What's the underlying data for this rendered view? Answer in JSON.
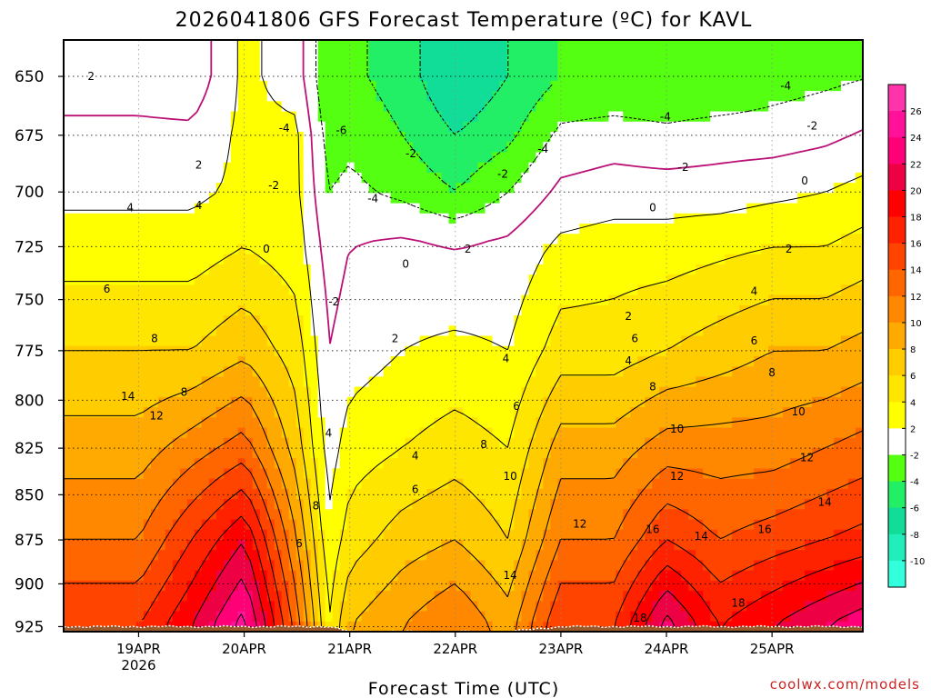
{
  "chart_data": {
    "type": "heatmap",
    "title": "2026041806 GFS Forecast Temperature (ºC) for KAVL",
    "xlabel": "Forecast Time (UTC)",
    "ylabel": "",
    "y_reversed": true,
    "ylim": [
      928,
      635
    ],
    "y_ticks": [
      "650",
      "675",
      "700",
      "725",
      "750",
      "775",
      "800",
      "825",
      "850",
      "875",
      "900",
      "925"
    ],
    "x_ticks": [
      {
        "label": "19APR",
        "sublabel": "2026"
      },
      {
        "label": "20APR"
      },
      {
        "label": "21APR"
      },
      {
        "label": "22APR"
      },
      {
        "label": "23APR"
      },
      {
        "label": "24APR"
      },
      {
        "label": "25APR"
      }
    ],
    "colorbar_labels": [
      "26",
      "24",
      "22",
      "20",
      "18",
      "16",
      "14",
      "12",
      "10",
      "8",
      "6",
      "4",
      "2",
      "-2",
      "-4",
      "-6",
      "-8",
      "-10"
    ],
    "watermark": "coolwx.com/models",
    "temperature_bands": [
      {
        "min": -12,
        "max": -10,
        "color": "#33ffdd"
      },
      {
        "min": -10,
        "max": -8,
        "color": "#22eebb"
      },
      {
        "min": -8,
        "max": -6,
        "color": "#11dd99"
      },
      {
        "min": -6,
        "max": -4,
        "color": "#22ee66"
      },
      {
        "min": -4,
        "max": -2,
        "color": "#55ff11"
      },
      {
        "min": -2,
        "max": 2,
        "color": "#ffffff"
      },
      {
        "min": 2,
        "max": 4,
        "color": "#ffff00"
      },
      {
        "min": 4,
        "max": 6,
        "color": "#ffe600"
      },
      {
        "min": 6,
        "max": 8,
        "color": "#ffcc00"
      },
      {
        "min": 8,
        "max": 10,
        "color": "#ffaa00"
      },
      {
        "min": 10,
        "max": 12,
        "color": "#ff8800"
      },
      {
        "min": 12,
        "max": 14,
        "color": "#ff6600"
      },
      {
        "min": 14,
        "max": 16,
        "color": "#ff4400"
      },
      {
        "min": 16,
        "max": 18,
        "color": "#ff2200"
      },
      {
        "min": 18,
        "max": 20,
        "color": "#ff0000"
      },
      {
        "min": 20,
        "max": 22,
        "color": "#ee0044"
      },
      {
        "min": 22,
        "max": 24,
        "color": "#ff0077"
      },
      {
        "min": 24,
        "max": 26,
        "color": "#ff1199"
      },
      {
        "min": 26,
        "max": 40,
        "color": "#ff33aa"
      }
    ],
    "profiles": [
      {
        "time": 0.0,
        "surface_hpa": 925,
        "levels": [
          [
            925,
            16
          ],
          [
            875,
            12
          ],
          [
            825,
            9
          ],
          [
            775,
            6
          ],
          [
            725,
            3
          ],
          [
            700,
            1.5
          ],
          [
            675,
            0.5
          ],
          [
            650,
            -1
          ]
        ]
      },
      {
        "time": 0.5,
        "surface_hpa": 925,
        "levels": [
          [
            925,
            20
          ],
          [
            875,
            16
          ],
          [
            825,
            11
          ],
          [
            775,
            6
          ],
          [
            725,
            3
          ],
          [
            700,
            1.5
          ],
          [
            675,
            0.5
          ],
          [
            650,
            -1.5
          ]
        ]
      },
      {
        "time": 1.0,
        "surface_hpa": 925,
        "levels": [
          [
            925,
            25
          ],
          [
            875,
            20
          ],
          [
            825,
            13
          ],
          [
            775,
            7.5
          ],
          [
            725,
            4
          ],
          [
            700,
            2.5
          ],
          [
            675,
            2.5
          ],
          [
            650,
            2.5
          ]
        ]
      },
      {
        "time": 1.5,
        "surface_hpa": 925,
        "levels": [
          [
            925,
            13
          ],
          [
            875,
            10
          ],
          [
            825,
            7
          ],
          [
            775,
            5
          ],
          [
            725,
            3
          ],
          [
            700,
            2.5
          ],
          [
            675,
            2.5
          ],
          [
            650,
            1
          ]
        ]
      },
      {
        "time": 1.8,
        "surface_hpa": 925,
        "levels": [
          [
            925,
            4
          ],
          [
            875,
            2.5
          ],
          [
            825,
            1
          ],
          [
            775,
            0
          ],
          [
            725,
            -1
          ],
          [
            700,
            -2
          ],
          [
            675,
            -3
          ],
          [
            650,
            -4
          ]
        ]
      },
      {
        "time": 2.0,
        "surface_hpa": 928,
        "levels": [
          [
            925,
            8
          ],
          [
            875,
            5
          ],
          [
            825,
            3
          ],
          [
            775,
            1
          ],
          [
            725,
            0
          ],
          [
            700,
            -1.5
          ],
          [
            675,
            -2.5
          ],
          [
            650,
            -3.5
          ]
        ]
      },
      {
        "time": 2.5,
        "surface_hpa": 928,
        "levels": [
          [
            925,
            10
          ],
          [
            875,
            7
          ],
          [
            825,
            4
          ],
          [
            775,
            2
          ],
          [
            725,
            0.5
          ],
          [
            700,
            -2.5
          ],
          [
            675,
            -4
          ],
          [
            650,
            -5
          ]
        ]
      },
      {
        "time": 3.0,
        "surface_hpa": 928,
        "levels": [
          [
            925,
            12
          ],
          [
            875,
            8
          ],
          [
            825,
            5
          ],
          [
            775,
            2.5
          ],
          [
            725,
            0
          ],
          [
            700,
            -4
          ],
          [
            675,
            -6
          ],
          [
            650,
            -8
          ]
        ]
      },
      {
        "time": 3.5,
        "surface_hpa": 928,
        "levels": [
          [
            925,
            9
          ],
          [
            875,
            6
          ],
          [
            825,
            4
          ],
          [
            775,
            2
          ],
          [
            725,
            0.5
          ],
          [
            700,
            -2
          ],
          [
            675,
            -4.5
          ],
          [
            650,
            -6
          ]
        ]
      },
      {
        "time": 4.0,
        "surface_hpa": 925,
        "levels": [
          [
            925,
            16
          ],
          [
            875,
            12
          ],
          [
            825,
            9
          ],
          [
            775,
            5
          ],
          [
            725,
            2.5
          ],
          [
            700,
            0.5
          ],
          [
            675,
            -1.5
          ],
          [
            650,
            -4
          ]
        ]
      },
      {
        "time": 4.5,
        "surface_hpa": 925,
        "levels": [
          [
            925,
            16
          ],
          [
            875,
            12
          ],
          [
            825,
            9
          ],
          [
            775,
            5
          ],
          [
            725,
            3
          ],
          [
            700,
            1
          ],
          [
            675,
            -1
          ],
          [
            650,
            -4
          ]
        ]
      },
      {
        "time": 5.0,
        "surface_hpa": 925,
        "levels": [
          [
            925,
            23
          ],
          [
            875,
            16
          ],
          [
            825,
            11
          ],
          [
            775,
            6
          ],
          [
            725,
            3
          ],
          [
            700,
            1
          ],
          [
            675,
            -1.5
          ],
          [
            650,
            -4
          ]
        ]
      },
      {
        "time": 5.5,
        "surface_hpa": 925,
        "levels": [
          [
            925,
            18
          ],
          [
            875,
            14
          ],
          [
            825,
            11
          ],
          [
            775,
            7
          ],
          [
            725,
            3.5
          ],
          [
            700,
            1
          ],
          [
            675,
            -1
          ],
          [
            650,
            -4
          ]
        ]
      },
      {
        "time": 6.0,
        "surface_hpa": 925,
        "levels": [
          [
            925,
            20
          ],
          [
            875,
            15
          ],
          [
            825,
            11
          ],
          [
            775,
            8
          ],
          [
            725,
            4
          ],
          [
            700,
            1.5
          ],
          [
            675,
            -1
          ],
          [
            650,
            -3
          ]
        ]
      },
      {
        "time": 6.5,
        "surface_hpa": 925,
        "levels": [
          [
            925,
            22
          ],
          [
            875,
            16
          ],
          [
            825,
            12
          ],
          [
            775,
            8
          ],
          [
            725,
            4
          ],
          [
            700,
            2
          ],
          [
            675,
            -0.5
          ],
          [
            650,
            -2.5
          ]
        ]
      },
      {
        "time": 7.0,
        "surface_hpa": 925,
        "levels": [
          [
            925,
            24
          ],
          [
            875,
            17
          ],
          [
            825,
            13
          ],
          [
            775,
            9
          ],
          [
            725,
            5
          ],
          [
            700,
            3
          ],
          [
            675,
            0.5
          ],
          [
            650,
            -2
          ]
        ]
      }
    ],
    "contour_labels": [
      {
        "value": "2",
        "time": -0.45,
        "hpa": 650
      },
      {
        "value": "4",
        "time": -0.08,
        "hpa": 707
      },
      {
        "value": "6",
        "time": -0.3,
        "hpa": 745
      },
      {
        "value": "8",
        "time": 0.15,
        "hpa": 769
      },
      {
        "value": "14",
        "time": -0.1,
        "hpa": 798
      },
      {
        "value": "12",
        "time": 0.17,
        "hpa": 808
      },
      {
        "value": "8",
        "time": 0.43,
        "hpa": 796
      },
      {
        "value": "2",
        "time": 0.57,
        "hpa": 688
      },
      {
        "value": "4",
        "time": 0.57,
        "hpa": 706
      },
      {
        "value": "-2",
        "time": 1.28,
        "hpa": 697
      },
      {
        "value": "0",
        "time": 1.21,
        "hpa": 726
      },
      {
        "value": "-4",
        "time": 1.38,
        "hpa": 672
      },
      {
        "value": "-6",
        "time": 1.92,
        "hpa": 673
      },
      {
        "value": "-2",
        "time": 1.85,
        "hpa": 751
      },
      {
        "value": "-4",
        "time": 2.22,
        "hpa": 703
      },
      {
        "value": "-2",
        "time": 2.58,
        "hpa": 683
      },
      {
        "value": "0",
        "time": 2.53,
        "hpa": 733
      },
      {
        "value": "2",
        "time": 2.43,
        "hpa": 769
      },
      {
        "value": "4",
        "time": 1.8,
        "hpa": 817
      },
      {
        "value": "8",
        "time": 1.68,
        "hpa": 856
      },
      {
        "value": "6",
        "time": 1.52,
        "hpa": 877
      },
      {
        "value": "4",
        "time": 2.62,
        "hpa": 829
      },
      {
        "value": "6",
        "time": 2.62,
        "hpa": 847
      },
      {
        "value": "2",
        "time": 3.12,
        "hpa": 726
      },
      {
        "value": "-2",
        "time": 3.45,
        "hpa": 692
      },
      {
        "value": "-4",
        "time": 3.83,
        "hpa": 681
      },
      {
        "value": "4",
        "time": 3.48,
        "hpa": 779
      },
      {
        "value": "6",
        "time": 3.58,
        "hpa": 803
      },
      {
        "value": "8",
        "time": 3.27,
        "hpa": 823
      },
      {
        "value": "10",
        "time": 3.52,
        "hpa": 840
      },
      {
        "value": "14",
        "time": 3.52,
        "hpa": 895
      },
      {
        "value": "12",
        "time": 4.18,
        "hpa": 866
      },
      {
        "value": "2",
        "time": 4.64,
        "hpa": 758
      },
      {
        "value": "4",
        "time": 4.64,
        "hpa": 780
      },
      {
        "value": "6",
        "time": 4.7,
        "hpa": 769
      },
      {
        "value": "8",
        "time": 4.87,
        "hpa": 793
      },
      {
        "value": "10",
        "time": 5.1,
        "hpa": 815
      },
      {
        "value": "12",
        "time": 5.1,
        "hpa": 840
      },
      {
        "value": "14",
        "time": 5.33,
        "hpa": 873
      },
      {
        "value": "16",
        "time": 4.87,
        "hpa": 869
      },
      {
        "value": "18",
        "time": 4.75,
        "hpa": 920
      },
      {
        "value": "-4",
        "time": 4.99,
        "hpa": 667
      },
      {
        "value": "-2",
        "time": 5.16,
        "hpa": 689
      },
      {
        "value": "0",
        "time": 4.87,
        "hpa": 707
      },
      {
        "value": "-4",
        "time": 6.13,
        "hpa": 654
      },
      {
        "value": "-2",
        "time": 6.38,
        "hpa": 671
      },
      {
        "value": "0",
        "time": 6.31,
        "hpa": 695
      },
      {
        "value": "2",
        "time": 6.16,
        "hpa": 726
      },
      {
        "value": "4",
        "time": 5.83,
        "hpa": 746
      },
      {
        "value": "6",
        "time": 5.83,
        "hpa": 770
      },
      {
        "value": "8",
        "time": 6.0,
        "hpa": 786
      },
      {
        "value": "10",
        "time": 6.25,
        "hpa": 806
      },
      {
        "value": "12",
        "time": 6.33,
        "hpa": 830
      },
      {
        "value": "14",
        "time": 6.5,
        "hpa": 854
      },
      {
        "value": "16",
        "time": 5.93,
        "hpa": 869
      },
      {
        "value": "18",
        "time": 5.68,
        "hpa": 911
      }
    ]
  }
}
